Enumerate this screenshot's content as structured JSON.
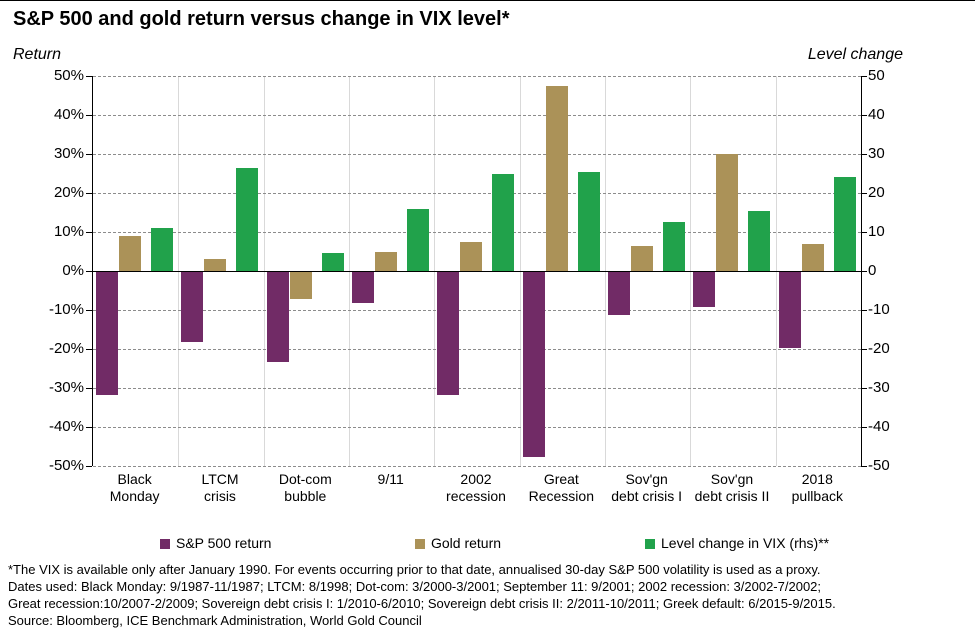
{
  "title": "S&P 500 and gold return versus change in VIX level*",
  "axes": {
    "left_caption": "Return",
    "right_caption": "Level change"
  },
  "legend": [
    {
      "label": "S&P 500 return",
      "color": "#712B66"
    },
    {
      "label": "Gold return",
      "color": "#AB9258"
    },
    {
      "label": "Level change in VIX (rhs)**",
      "color": "#21A24B"
    }
  ],
  "footnotes": [
    "*The VIX is available only after January 1990. For events occurring prior to that date, annualised 30-day S&P 500 volatility is used as a proxy.",
    "Dates used: Black Monday: 9/1987-11/1987; LTCM: 8/1998; Dot-com: 3/2000-3/2001; September 11: 9/2001; 2002 recession: 3/2002-7/2002;",
    "Great recession:10/2007-2/2009; Sovereign debt crisis I: 1/2010-6/2010; Sovereign debt crisis II: 2/2011-10/2011; Greek default: 6/2015-9/2015.",
    "Source: Bloomberg, ICE Benchmark Administration, World Gold Council"
  ],
  "chart_data": {
    "type": "bar",
    "title": "S&P 500 and gold return versus change in VIX level*",
    "left_axis": {
      "label": "Return",
      "min": -50,
      "max": 50,
      "step": 10,
      "ticks": [
        "50%",
        "40%",
        "30%",
        "20%",
        "10%",
        "0%",
        "-10%",
        "-20%",
        "-30%",
        "-40%",
        "-50%"
      ]
    },
    "right_axis": {
      "label": "Level change",
      "min": -50,
      "max": 50,
      "step": 10,
      "ticks": [
        "50",
        "40",
        "30",
        "20",
        "10",
        "0",
        "-10",
        "-20",
        "-30",
        "-40",
        "-50"
      ]
    },
    "categories": [
      [
        "Black",
        "Monday"
      ],
      [
        "LTCM",
        "crisis"
      ],
      [
        "Dot-com",
        "bubble"
      ],
      [
        "9/11"
      ],
      [
        "2002",
        "recession"
      ],
      [
        "Great",
        "Recession"
      ],
      [
        "Sov'gn",
        "debt crisis I"
      ],
      [
        "Sov'gn",
        "debt crisis II"
      ],
      [
        "2018",
        "pullback"
      ]
    ],
    "series": [
      {
        "name": "S&P 500 return",
        "axis": "left",
        "color": "#712B66",
        "values": [
          -31.5,
          -18,
          -23,
          -8,
          -31.5,
          -47.5,
          -11,
          -9,
          -19.5
        ]
      },
      {
        "name": "Gold return",
        "axis": "left",
        "color": "#AB9258",
        "values": [
          9,
          3,
          -7,
          5,
          7.5,
          47.5,
          6.5,
          30,
          7
        ]
      },
      {
        "name": "Level change in VIX (rhs)**",
        "axis": "right",
        "color": "#21A24B",
        "values": [
          11,
          26.5,
          4.5,
          16,
          25,
          25.5,
          12.5,
          15.5,
          24
        ]
      }
    ],
    "grid": "horizontal-dashed, vertical-category-separators",
    "legend_position": "bottom"
  }
}
